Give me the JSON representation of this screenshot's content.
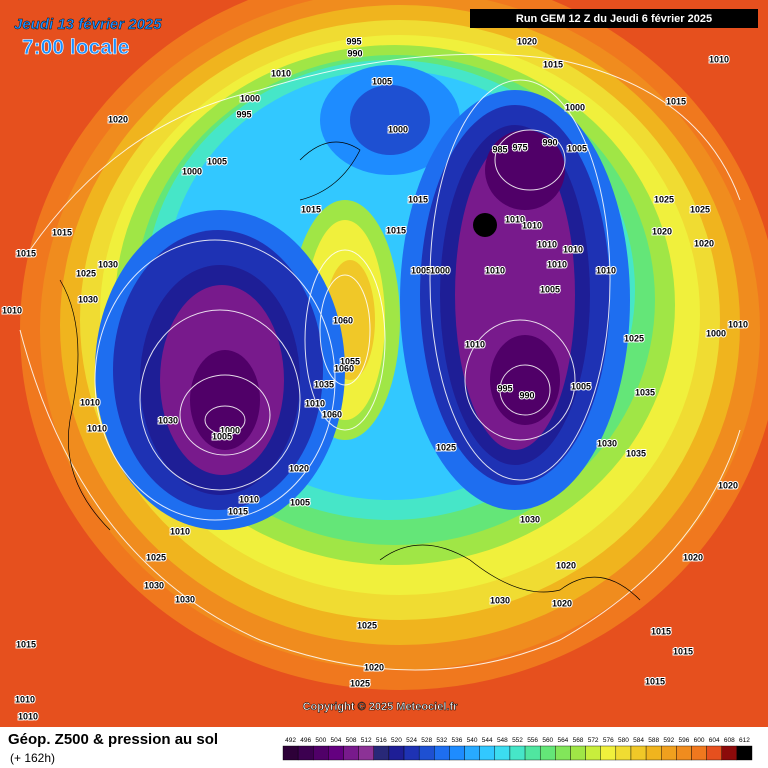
{
  "header": {
    "date": "Jeudi 13 février 2025",
    "time": "7:00 locale",
    "run": "Run GEM 12 Z du Jeudi 6 février 2025"
  },
  "footer": {
    "title": "Géop. Z500 & pression au sol",
    "lead_time": "(+ 162h)",
    "copyright": "Copyright © 2025 Meteociel.fr"
  },
  "scale": {
    "labels": [
      492,
      496,
      500,
      504,
      508,
      512,
      516,
      520,
      524,
      528,
      532,
      536,
      540,
      544,
      548,
      552,
      556,
      560,
      564,
      568,
      572,
      576,
      580,
      584,
      588,
      592,
      596,
      600,
      604,
      608,
      612
    ],
    "colors": [
      "#2d0038",
      "#3c0050",
      "#500068",
      "#640080",
      "#781a8c",
      "#8c3296",
      "#282878",
      "#1e1e96",
      "#1e32b4",
      "#1e50d2",
      "#1e6ef0",
      "#1e8cff",
      "#28aaff",
      "#32c8ff",
      "#3cdcf0",
      "#46e6c8",
      "#50e6a0",
      "#64e678",
      "#82e65a",
      "#a0e646",
      "#c8ee3c",
      "#f0f03c",
      "#f0dc32",
      "#f0c828",
      "#f0b41e",
      "#f0a01e",
      "#f08c1e",
      "#f0781e",
      "#e6501e",
      "#8c0a0a",
      "#000000"
    ]
  },
  "isobar_labels": [
    "995",
    "990",
    "1020",
    "1010",
    "1010",
    "1005",
    "1015",
    "1000",
    "1015",
    "1020",
    "995",
    "1000",
    "1000",
    "985",
    "975",
    "990",
    "1005",
    "1005",
    "1000",
    "1015",
    "1015",
    "1025",
    "1025",
    "1015",
    "1015",
    "1010",
    "1010",
    "1020",
    "1015",
    "1030",
    "1025",
    "1020",
    "1005",
    "1000",
    "1010",
    "1010",
    "1010",
    "1010",
    "1010",
    "1030",
    "1005",
    "1010",
    "1060",
    "1025",
    "1010",
    "1000",
    "1010",
    "1055",
    "1060",
    "1035",
    "1005",
    "995",
    "990",
    "1035",
    "1010",
    "1010",
    "1010",
    "1030",
    "1060",
    "1000",
    "1005",
    "1025",
    "1030",
    "1035",
    "1020",
    "1020",
    "1010",
    "1005",
    "1015",
    "1030",
    "1010",
    "1025",
    "1020",
    "1020",
    "1030",
    "1030",
    "1030",
    "1020",
    "1025",
    "1015",
    "1015",
    "1020",
    "1015",
    "1025",
    "1015",
    "1010",
    "1010"
  ]
}
